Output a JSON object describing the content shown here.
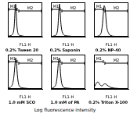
{
  "chart_data": [
    {
      "type": "line",
      "title": "0.2% Tween 20",
      "x_label": "FL1-H",
      "log": "x",
      "grid": false,
      "tick_labels": false,
      "color": "#000000",
      "x": [
        1,
        1.5,
        2,
        3,
        4,
        5,
        6,
        7,
        8,
        10,
        12,
        15,
        20,
        30,
        50,
        100,
        300,
        1000,
        10000
      ],
      "values": [
        2,
        2,
        3,
        5,
        10,
        20,
        45,
        80,
        95,
        55,
        25,
        10,
        5,
        3,
        2,
        1,
        1,
        0,
        0
      ],
      "xlim": [
        1,
        10000
      ],
      "ylim": [
        0,
        100
      ],
      "annotations": [
        {
          "text": "M1",
          "x": [
            1,
            15
          ]
        },
        {
          "text": "M2",
          "x": [
            15,
            10000
          ]
        }
      ]
    },
    {
      "type": "line",
      "title": "0.2% Saponin",
      "x_label": "FL1-H",
      "log": "x",
      "grid": false,
      "tick_labels": false,
      "color": "#000000",
      "x": [
        1,
        1.5,
        2,
        3,
        4,
        5,
        6,
        7,
        8,
        10,
        12,
        15,
        20,
        30,
        50,
        100,
        300,
        1000,
        10000
      ],
      "values": [
        1,
        1,
        2,
        3,
        5,
        10,
        20,
        40,
        70,
        95,
        70,
        35,
        15,
        6,
        3,
        2,
        1,
        0,
        0
      ],
      "xlim": [
        1,
        10000
      ],
      "ylim": [
        0,
        100
      ],
      "annotations": [
        {
          "text": "M1",
          "x": [
            1,
            15
          ]
        },
        {
          "text": "M2",
          "x": [
            15,
            10000
          ]
        }
      ]
    },
    {
      "type": "line",
      "title": "0.2% NP-40",
      "x_label": "FL1-H",
      "log": "x",
      "grid": false,
      "tick_labels": false,
      "color": "#000000",
      "x": [
        1,
        1.5,
        2,
        3,
        4,
        5,
        6,
        7,
        8,
        10,
        12,
        15,
        20,
        30,
        50,
        100,
        300,
        1000,
        10000
      ],
      "values": [
        1,
        1,
        1,
        2,
        3,
        5,
        8,
        12,
        20,
        40,
        65,
        90,
        80,
        30,
        10,
        3,
        1,
        0,
        0
      ],
      "xlim": [
        1,
        10000
      ],
      "ylim": [
        0,
        100
      ],
      "annotations": [
        {
          "text": "M1",
          "x": [
            1,
            15
          ]
        },
        {
          "text": "M2",
          "x": [
            15,
            10000
          ]
        }
      ]
    },
    {
      "type": "line",
      "title": "1.0 mM SCO",
      "x_label": "FL1-H",
      "log": "x",
      "grid": false,
      "tick_labels": false,
      "color": "#000000",
      "x": [
        1,
        1.5,
        2,
        3,
        4,
        5,
        6,
        7,
        8,
        10,
        12,
        15,
        20,
        30,
        50,
        100,
        300,
        1000,
        10000
      ],
      "values": [
        2,
        3,
        5,
        10,
        20,
        35,
        55,
        75,
        90,
        80,
        50,
        25,
        10,
        5,
        3,
        2,
        1,
        0,
        0
      ],
      "xlim": [
        1,
        10000
      ],
      "ylim": [
        0,
        100
      ],
      "annotations": [
        {
          "text": "M1",
          "x": [
            1,
            15
          ]
        },
        {
          "text": "M2",
          "x": [
            15,
            10000
          ]
        }
      ]
    },
    {
      "type": "line",
      "title": "1.0 mM of PA",
      "x_label": "FL1-H",
      "log": "x",
      "grid": false,
      "tick_labels": false,
      "color": "#000000",
      "x": [
        1,
        1.5,
        2,
        3,
        4,
        5,
        6,
        7,
        8,
        10,
        12,
        15,
        20,
        30,
        50,
        100,
        300,
        1000,
        10000
      ],
      "values": [
        1,
        2,
        4,
        8,
        15,
        30,
        50,
        70,
        85,
        90,
        60,
        30,
        12,
        5,
        3,
        2,
        1,
        0,
        0
      ],
      "xlim": [
        1,
        10000
      ],
      "ylim": [
        0,
        100
      ],
      "annotations": [
        {
          "text": "M1",
          "x": [
            1,
            15
          ]
        },
        {
          "text": "M2",
          "x": [
            15,
            10000
          ]
        }
      ]
    },
    {
      "type": "line",
      "title": "0.2% Triton X-100",
      "x_label": "FL1-H",
      "log": "x",
      "grid": false,
      "tick_labels": false,
      "color": "#000000",
      "x": [
        1,
        1.5,
        2,
        3,
        4,
        5,
        6,
        7,
        8,
        10,
        12,
        15,
        20,
        30,
        50,
        100,
        300,
        1000,
        10000
      ],
      "values": [
        5,
        12,
        18,
        20,
        16,
        12,
        10,
        9,
        9,
        10,
        12,
        14,
        15,
        12,
        8,
        4,
        2,
        1,
        0
      ],
      "xlim": [
        1,
        10000
      ],
      "ylim": [
        0,
        100
      ],
      "annotations": [
        {
          "text": "M1",
          "x": [
            1,
            15
          ]
        },
        {
          "text": "M2",
          "x": [
            15,
            10000
          ]
        }
      ]
    }
  ],
  "caption": "Log fluorescence intensity"
}
